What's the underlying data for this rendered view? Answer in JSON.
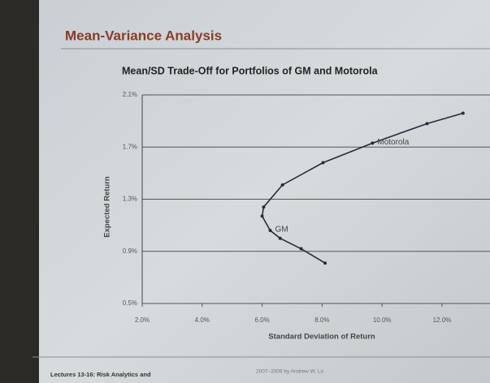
{
  "header": {
    "title": "Mean-Variance Analysis"
  },
  "footer": {
    "left": "Lectures 13-16: Risk Analytics and",
    "right": "2007–2009 by Andrew W. Lo"
  },
  "chart_data": {
    "type": "line",
    "title": "Mean/SD Trade-Off for Portfolios of GM and Motorola",
    "x_label": "Standard Deviation of Return",
    "y_label": "Expected Return",
    "xlim": [
      2.0,
      13.6
    ],
    "ylim": [
      0.5,
      2.1
    ],
    "xticks": [
      {
        "value": 2,
        "label": "2.0%"
      },
      {
        "value": 4,
        "label": "4.0%"
      },
      {
        "value": 6,
        "label": "6.0%"
      },
      {
        "value": 8,
        "label": "8.0%"
      },
      {
        "value": 10,
        "label": "10.0%"
      },
      {
        "value": 12,
        "label": "12.0%"
      }
    ],
    "yticks": [
      {
        "value": 0.5,
        "label": "0.5%"
      },
      {
        "value": 0.9,
        "label": "0.9%"
      },
      {
        "value": 1.3,
        "label": "1.3%"
      },
      {
        "value": 1.7,
        "label": "1.7%"
      },
      {
        "value": 2.1,
        "label": "2.1%"
      }
    ],
    "grid": true,
    "series": [
      {
        "color": "#2a2a3a",
        "x": [
          8.1,
          7.3,
          6.6,
          6.27,
          6.0,
          6.05,
          6.68,
          8.03,
          9.68,
          11.5,
          12.7
        ],
        "values": [
          0.81,
          0.92,
          1.0,
          1.06,
          1.17,
          1.24,
          1.41,
          1.58,
          1.73,
          1.88,
          1.96
        ]
      }
    ],
    "annotations": [
      {
        "text": "GM",
        "x": 6.27,
        "y": 1.06
      },
      {
        "text": "Motorola",
        "x": 9.68,
        "y": 1.73
      }
    ]
  }
}
